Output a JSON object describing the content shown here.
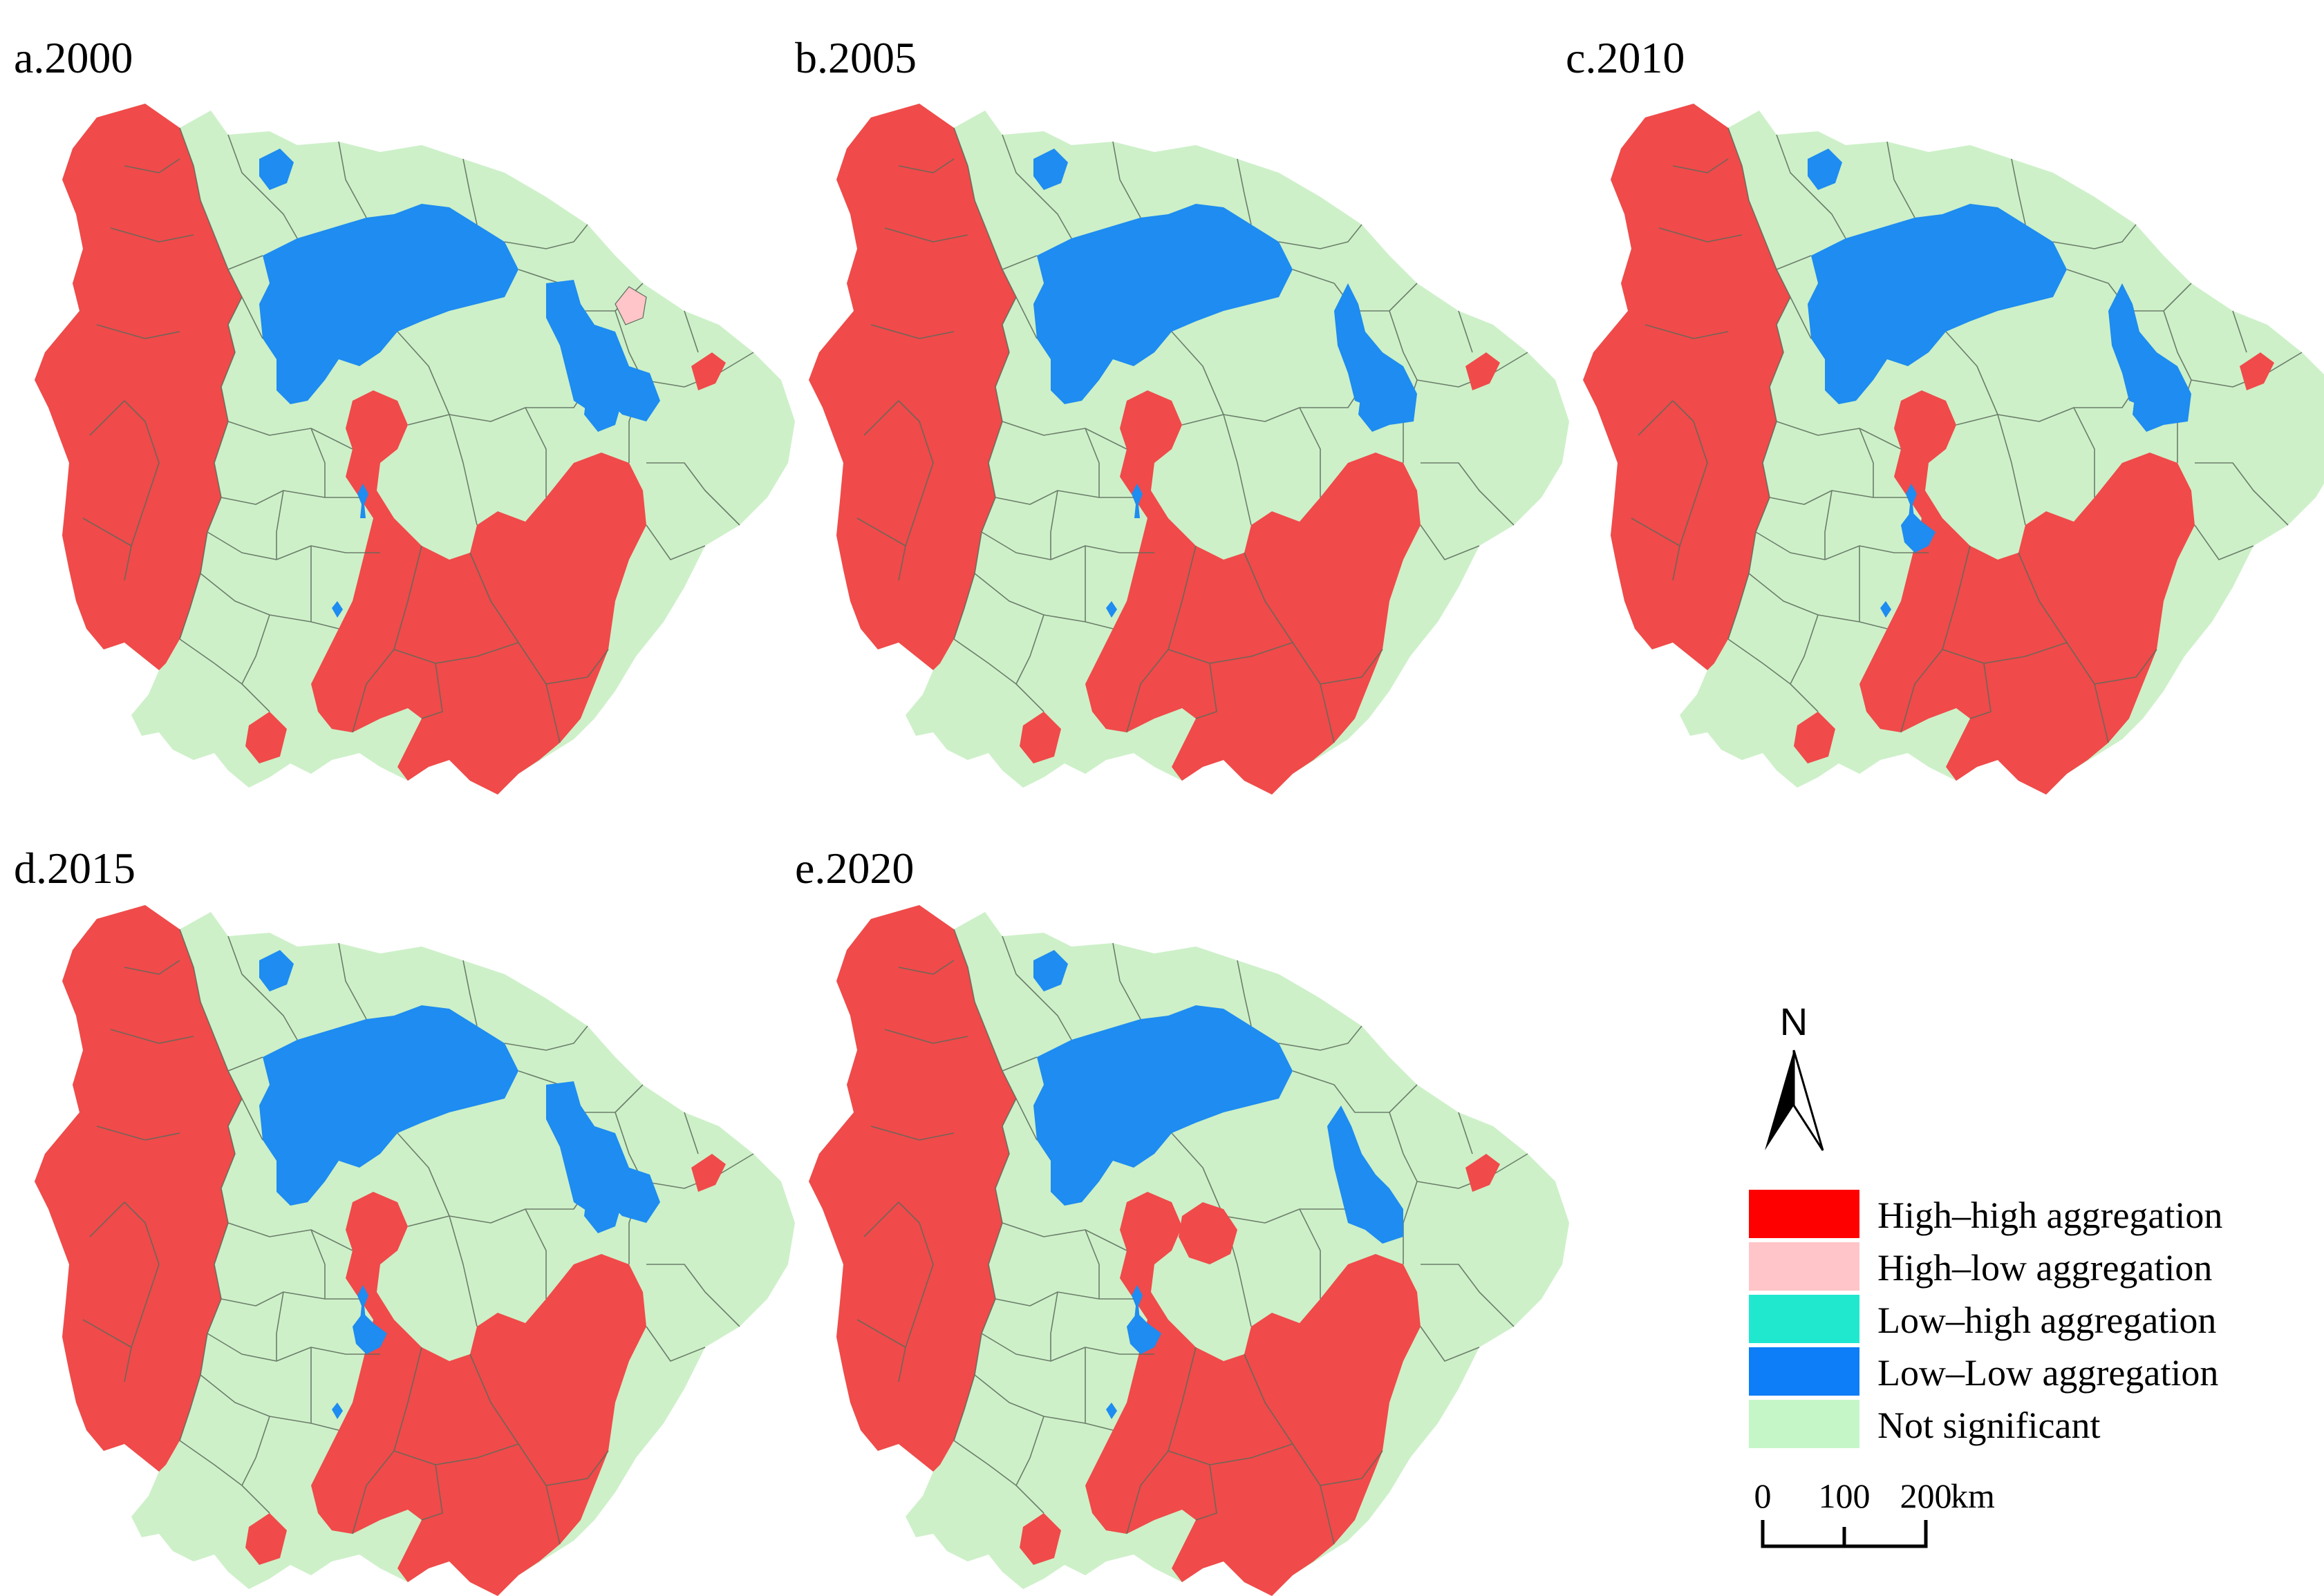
{
  "panels": [
    {
      "id": "a",
      "label": "a.2000"
    },
    {
      "id": "b",
      "label": "b.2005"
    },
    {
      "id": "c",
      "label": "c.2010"
    },
    {
      "id": "d",
      "label": "d.2015"
    },
    {
      "id": "e",
      "label": "e.2020"
    }
  ],
  "north": {
    "label": "N"
  },
  "legend": {
    "items": [
      {
        "label": "High–high aggregation",
        "color": "#ff0000"
      },
      {
        "label": "High–low aggregation",
        "color": "#ffc5c8"
      },
      {
        "label": "Low–high aggregation",
        "color": "#1fe8cf"
      },
      {
        "label": "Low–Low aggregation",
        "color": "#0d7ef7"
      },
      {
        "label": "Not significant",
        "color": "#c5f6c8"
      }
    ]
  },
  "scale": {
    "ticks": [
      "0",
      "100",
      "200"
    ],
    "unit": "km"
  },
  "colors": {
    "hh_map": "#f04a4a",
    "hl_map": "#ffc5c8",
    "ll_map": "#1e8cf0",
    "ns_map": "#cdf0c8",
    "boundary": "#5a6a5a"
  }
}
